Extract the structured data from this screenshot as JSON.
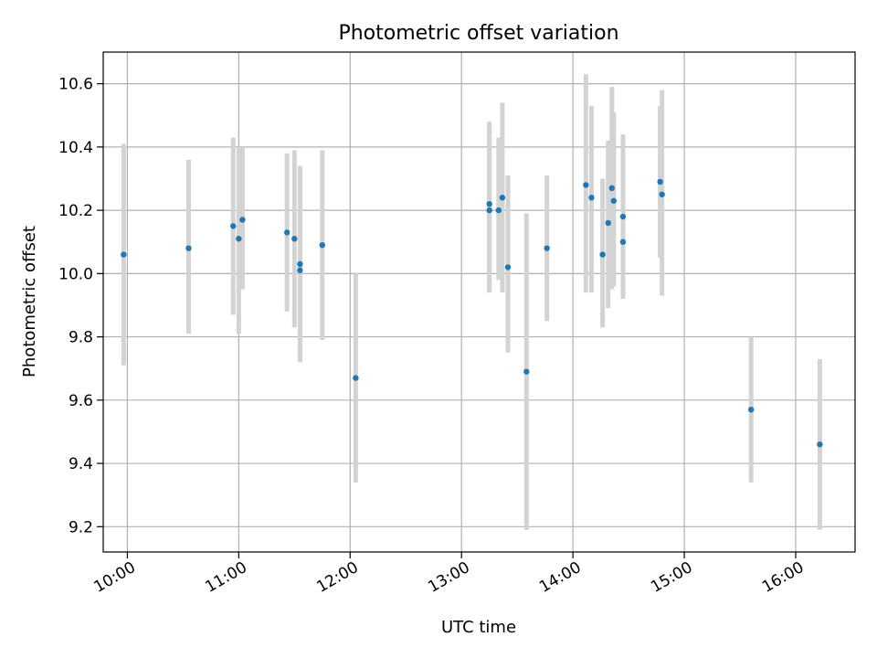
{
  "chart_data": {
    "type": "scatter",
    "title": "Photometric offset variation",
    "xlabel": "UTC time",
    "ylabel": "Photometric offset",
    "xlim": [
      "09:47",
      "16:32"
    ],
    "ylim": [
      9.12,
      10.7
    ],
    "x_ticks": [
      "10:00",
      "11:00",
      "12:00",
      "13:00",
      "14:00",
      "15:00",
      "16:00"
    ],
    "y_ticks": [
      9.2,
      9.4,
      9.6,
      9.8,
      10.0,
      10.2,
      10.4,
      10.6
    ],
    "grid": true,
    "colors": {
      "point": "#1f77b4",
      "errorbar": "#d3d3d3",
      "grid": "#b0b0b0"
    },
    "points": [
      {
        "x": "09:58",
        "y": 10.06,
        "yerr_low": 9.71,
        "yerr_high": 10.41
      },
      {
        "x": "10:33",
        "y": 10.08,
        "yerr_low": 9.81,
        "yerr_high": 10.36
      },
      {
        "x": "10:57",
        "y": 10.15,
        "yerr_low": 9.87,
        "yerr_high": 10.43
      },
      {
        "x": "11:00",
        "y": 10.11,
        "yerr_low": 9.81,
        "yerr_high": 10.4
      },
      {
        "x": "11:02",
        "y": 10.17,
        "yerr_low": 9.95,
        "yerr_high": 10.4
      },
      {
        "x": "11:26",
        "y": 10.13,
        "yerr_low": 9.88,
        "yerr_high": 10.38
      },
      {
        "x": "11:30",
        "y": 10.11,
        "yerr_low": 9.83,
        "yerr_high": 10.39
      },
      {
        "x": "11:33",
        "y": 10.03,
        "yerr_low": 9.72,
        "yerr_high": 10.34
      },
      {
        "x": "11:33",
        "y": 10.01,
        "yerr_low": 9.72,
        "yerr_high": 10.34
      },
      {
        "x": "11:45",
        "y": 10.09,
        "yerr_low": 9.79,
        "yerr_high": 10.39
      },
      {
        "x": "12:03",
        "y": 9.67,
        "yerr_low": 9.34,
        "yerr_high": 10.0
      },
      {
        "x": "13:15",
        "y": 10.2,
        "yerr_low": 9.94,
        "yerr_high": 10.46
      },
      {
        "x": "13:15",
        "y": 10.22,
        "yerr_low": 9.94,
        "yerr_high": 10.48
      },
      {
        "x": "13:20",
        "y": 10.2,
        "yerr_low": 9.98,
        "yerr_high": 10.43
      },
      {
        "x": "13:22",
        "y": 10.24,
        "yerr_low": 9.94,
        "yerr_high": 10.54
      },
      {
        "x": "13:25",
        "y": 10.02,
        "yerr_low": 9.75,
        "yerr_high": 10.31
      },
      {
        "x": "13:35",
        "y": 9.69,
        "yerr_low": 9.19,
        "yerr_high": 10.19
      },
      {
        "x": "13:46",
        "y": 10.08,
        "yerr_low": 9.85,
        "yerr_high": 10.31
      },
      {
        "x": "14:07",
        "y": 10.28,
        "yerr_low": 9.94,
        "yerr_high": 10.63
      },
      {
        "x": "14:10",
        "y": 10.24,
        "yerr_low": 9.94,
        "yerr_high": 10.53
      },
      {
        "x": "14:16",
        "y": 10.06,
        "yerr_low": 9.83,
        "yerr_high": 10.3
      },
      {
        "x": "14:19",
        "y": 10.16,
        "yerr_low": 9.89,
        "yerr_high": 10.42
      },
      {
        "x": "14:21",
        "y": 10.27,
        "yerr_low": 9.95,
        "yerr_high": 10.59
      },
      {
        "x": "14:22",
        "y": 10.23,
        "yerr_low": 9.96,
        "yerr_high": 10.51
      },
      {
        "x": "14:27",
        "y": 10.18,
        "yerr_low": 9.92,
        "yerr_high": 10.44
      },
      {
        "x": "14:27",
        "y": 10.1,
        "yerr_low": 9.92,
        "yerr_high": 10.3
      },
      {
        "x": "14:47",
        "y": 10.29,
        "yerr_low": 10.05,
        "yerr_high": 10.53
      },
      {
        "x": "14:48",
        "y": 10.25,
        "yerr_low": 9.93,
        "yerr_high": 10.58
      },
      {
        "x": "15:36",
        "y": 9.57,
        "yerr_low": 9.34,
        "yerr_high": 9.8
      },
      {
        "x": "16:13",
        "y": 9.46,
        "yerr_low": 9.19,
        "yerr_high": 9.73
      }
    ]
  }
}
